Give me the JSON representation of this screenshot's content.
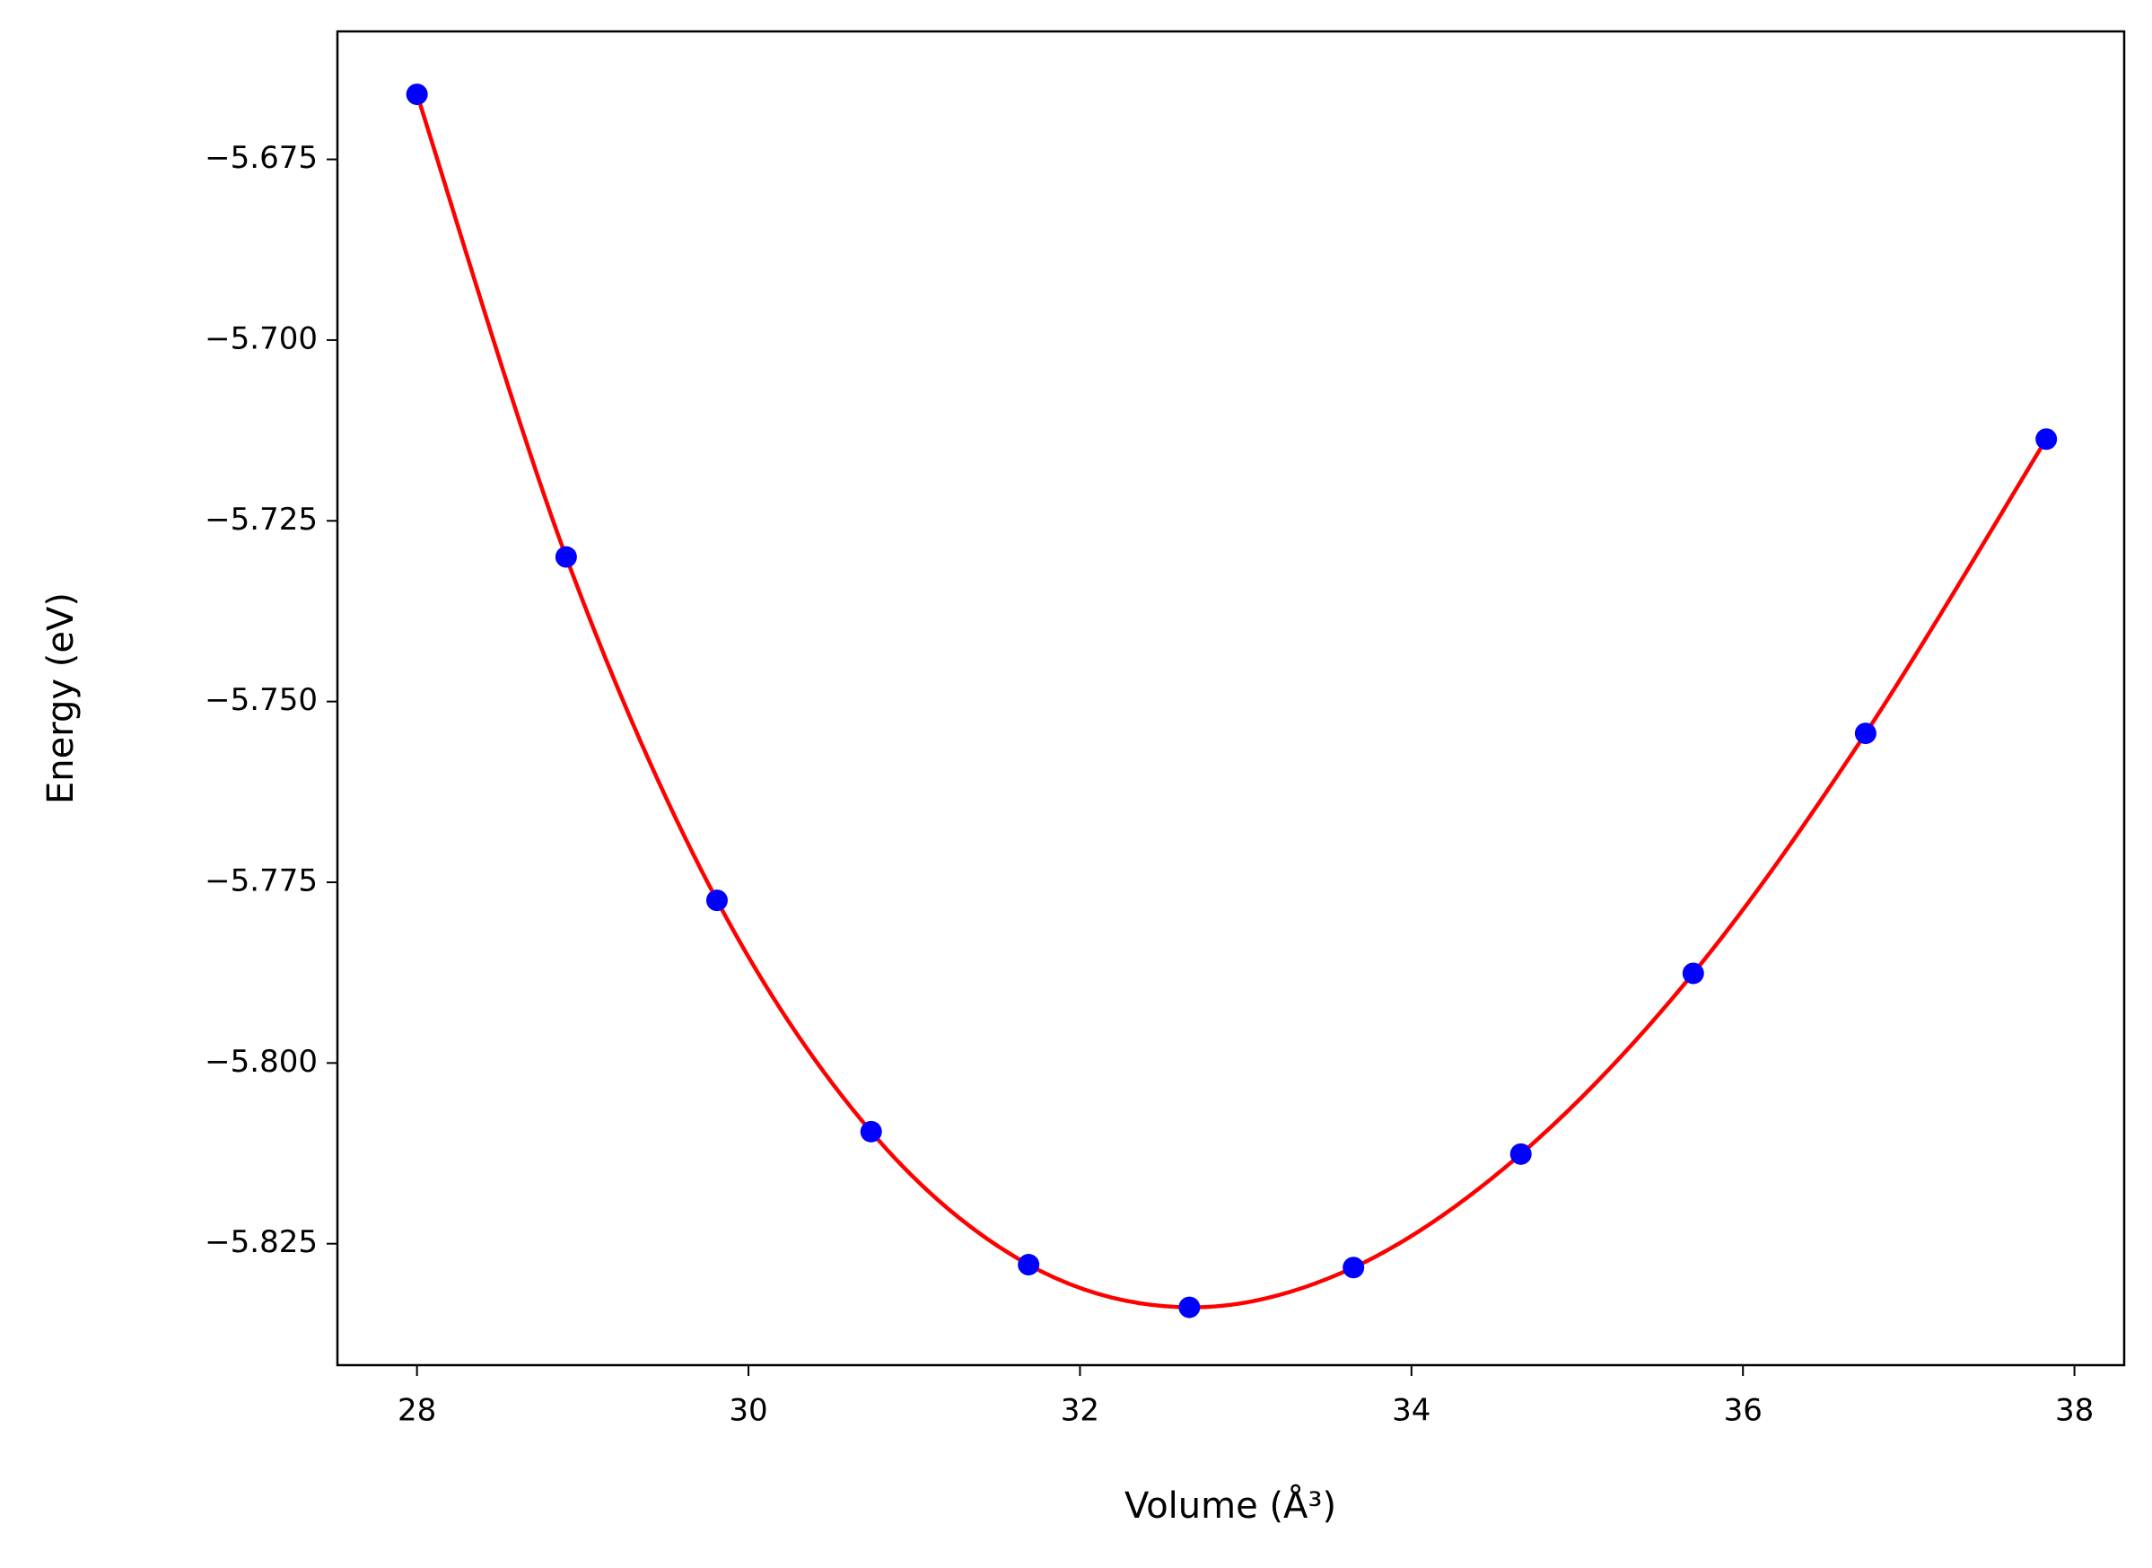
{
  "chart_data": {
    "type": "line",
    "x_label": "Volume (Å³)",
    "y_label": "Energy (eV)",
    "x": [
      28.0,
      28.9,
      29.81,
      30.74,
      31.69,
      32.66,
      33.65,
      34.66,
      35.7,
      36.74,
      37.83
    ],
    "series": [
      {
        "line_color": "#ff0000",
        "marker_color": "#0000ff",
        "values": [
          -5.666,
          -5.73,
          -5.7775,
          -5.8095,
          -5.8279,
          -5.8338,
          -5.8283,
          -5.8126,
          -5.7876,
          -5.7544,
          -5.7137
        ]
      }
    ],
    "xlim": [
      27.52,
      38.3
    ],
    "ylim": [
      -5.8418,
      -5.6573
    ],
    "xticks": [
      28,
      30,
      32,
      34,
      36,
      38
    ],
    "yticks": [
      {
        "value": -5.825,
        "label": "−5.825"
      },
      {
        "value": -5.8,
        "label": "−5.800"
      },
      {
        "value": -5.775,
        "label": "−5.775"
      },
      {
        "value": -5.75,
        "label": "−5.750"
      },
      {
        "value": -5.725,
        "label": "−5.725"
      },
      {
        "value": -5.7,
        "label": "−5.700"
      },
      {
        "value": -5.675,
        "label": "−5.675"
      }
    ],
    "grid": false
  }
}
